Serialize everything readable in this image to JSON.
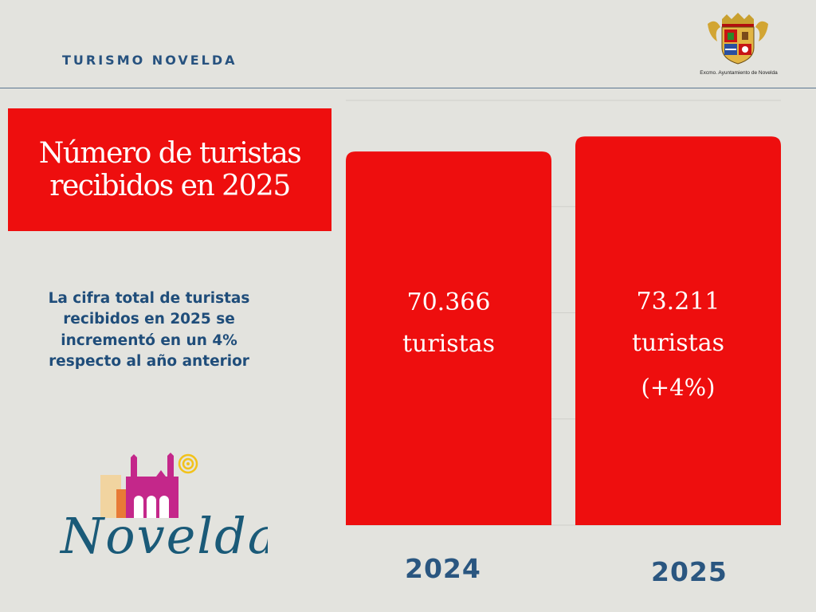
{
  "header": {
    "title": "TURISMO NOVELDA",
    "crest_icon": "coat-of-arms-icon",
    "crest_caption": "Excmo. Ayuntamiento de Novelda"
  },
  "title": "Número de turistas recibidos en 2025",
  "description": "La cifra total de turistas recibidos en 2025 se incrementó en un 4% respecto al año anterior",
  "logo": {
    "text": "Novelda",
    "icon": "novelda-castle-logo-icon"
  },
  "colors": {
    "accent": "#ee0e0e",
    "text_blue": "#27527f",
    "background": "#e3e3de"
  },
  "chart_data": {
    "type": "bar",
    "title": "Número de turistas recibidos en 2025",
    "categories": [
      "2024",
      "2025"
    ],
    "values": [
      70366,
      73211
    ],
    "ylim": [
      0,
      80000
    ],
    "grid": true,
    "data_labels": [
      {
        "value": "70.366",
        "unit": "turistas",
        "change": ""
      },
      {
        "value": "73.211",
        "unit": "turistas",
        "change": "(+4%)"
      }
    ]
  }
}
